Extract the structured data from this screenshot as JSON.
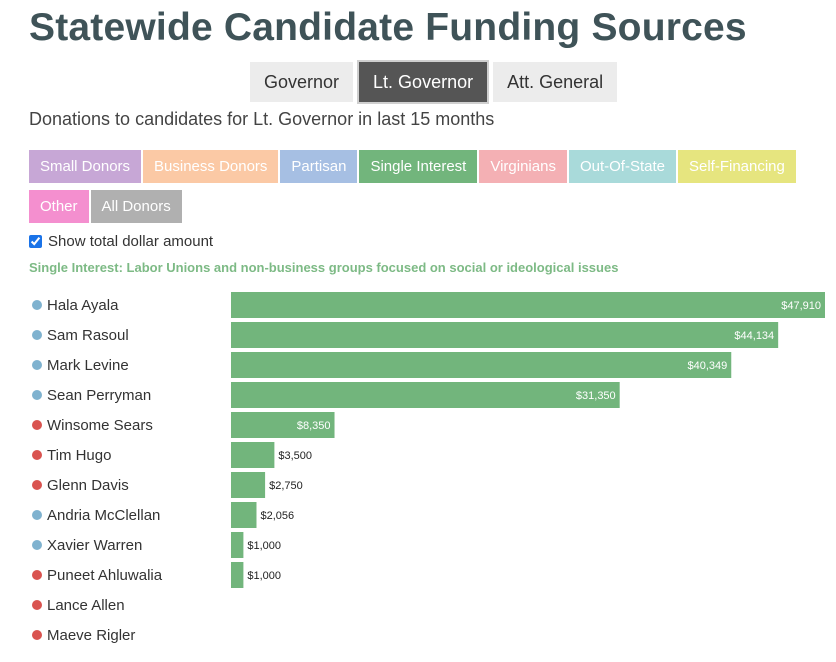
{
  "title": "Statewide Candidate Funding Sources",
  "office_tabs": [
    {
      "label": "Governor",
      "active": false
    },
    {
      "label": "Lt. Governor",
      "active": true
    },
    {
      "label": "Att. General",
      "active": false
    }
  ],
  "subtitle": "Donations to candidates for Lt. Governor in last 15 months",
  "categories": [
    {
      "label": "Small Donors",
      "color": "#c7a7d6",
      "name": "small-donors"
    },
    {
      "label": "Business Donors",
      "color": "#fbc9a5",
      "name": "business-donors"
    },
    {
      "label": "Partisan",
      "color": "#a6bfe3",
      "name": "partisan"
    },
    {
      "label": "Single Interest",
      "color": "#72b57c",
      "name": "single-interest"
    },
    {
      "label": "Virginians",
      "color": "#f4b0b4",
      "name": "virginians"
    },
    {
      "label": "Out-Of-State",
      "color": "#a9dada",
      "name": "out-of-state"
    },
    {
      "label": "Self-Financing",
      "color": "#e6e57f",
      "name": "self-financing"
    },
    {
      "label": "Other",
      "color": "#f48fcf",
      "name": "other"
    },
    {
      "label": "All Donors",
      "color": "#b0b0b0",
      "name": "all-donors"
    }
  ],
  "show_total": {
    "label": "Show total dollar amount",
    "checked": true
  },
  "category_description": "Single Interest: Labor Unions and non-business groups focused on social or ideological issues",
  "party_colors": {
    "democrat": "#7fb2cf",
    "republican": "#d9534f"
  },
  "chart_data": {
    "type": "bar",
    "orientation": "horizontal",
    "bar_color": "#72b57c",
    "xlim": [
      0,
      47910
    ],
    "categories": [
      "Hala Ayala",
      "Sam Rasoul",
      "Mark Levine",
      "Sean Perryman",
      "Winsome Sears",
      "Tim Hugo",
      "Glenn Davis",
      "Andria McClellan",
      "Xavier Warren",
      "Puneet Ahluwalia",
      "Lance Allen",
      "Maeve Rigler"
    ],
    "party": [
      "democrat",
      "democrat",
      "democrat",
      "democrat",
      "republican",
      "republican",
      "republican",
      "democrat",
      "democrat",
      "republican",
      "republican",
      "republican"
    ],
    "values": [
      47910,
      44134,
      40349,
      31350,
      8350,
      3500,
      2750,
      2056,
      1000,
      1000,
      null,
      null
    ],
    "value_labels": [
      "$47,910",
      "$44,134",
      "$40,349",
      "$31,350",
      "$8,350",
      "$3,500",
      "$2,750",
      "$2,056",
      "$1,000",
      "$1,000",
      "",
      ""
    ]
  }
}
